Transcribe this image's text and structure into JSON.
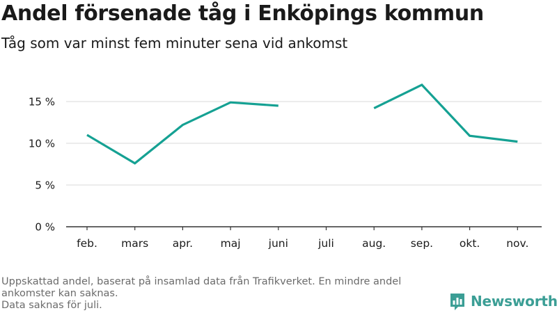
{
  "title": "Andel försenade tåg i Enköpings kommun",
  "subtitle": "Tåg som var minst fem minuter sena vid ankomst",
  "footer": {
    "line1": "Uppskattad andel, baserat på insamlad data från Trafikverket. En mindre andel ankomster kan saknas.",
    "line2": "Data saknas för juli."
  },
  "brand": {
    "name": "Newsworthy",
    "icon": "newsworthy-logo-icon",
    "color": "#3b9e95"
  },
  "chart_data": {
    "type": "line",
    "title": "Andel försenade tåg i Enköpings kommun",
    "subtitle": "Tåg som var minst fem minuter sena vid ankomst",
    "xlabel": "",
    "ylabel": "",
    "categories": [
      "feb.",
      "mars",
      "apr.",
      "maj",
      "juni",
      "juli",
      "aug.",
      "sep.",
      "okt.",
      "nov."
    ],
    "series": [
      {
        "values": [
          11.0,
          7.6,
          12.2,
          14.9,
          14.5,
          null,
          14.2,
          17.0,
          10.9,
          10.2
        ],
        "color": "#15a193"
      }
    ],
    "ylim": [
      0,
      18
    ],
    "yticks": [
      0,
      5,
      10,
      15
    ],
    "ytick_labels": [
      "0 %",
      "5 %",
      "10 %",
      "15 %"
    ],
    "grid": "horizontal",
    "legend": "none"
  }
}
